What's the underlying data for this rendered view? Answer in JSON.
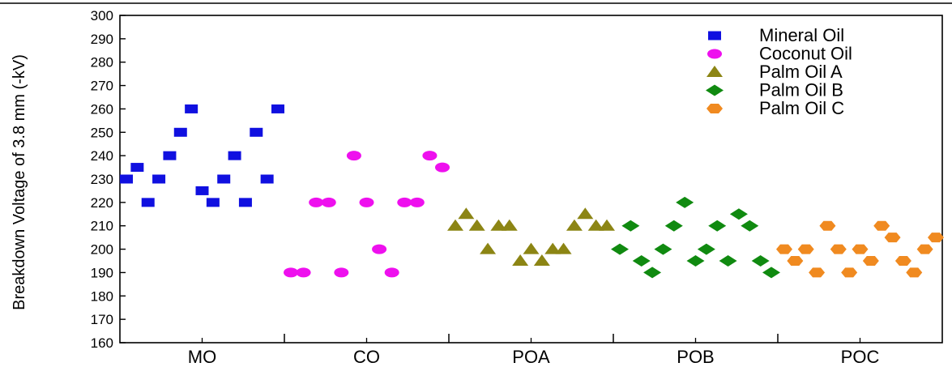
{
  "chart_data": {
    "type": "scatter",
    "ylabel": "Breakdown Voltage of 3.8 mm (-kV)",
    "ylim": [
      160,
      300
    ],
    "yticks": [
      160,
      170,
      180,
      190,
      200,
      210,
      220,
      230,
      240,
      250,
      260,
      270,
      280,
      290,
      300
    ],
    "categories": [
      "MO",
      "CO",
      "POA",
      "POB",
      "POC"
    ],
    "legend_position": "top-right",
    "grid": false,
    "series": [
      {
        "name": "Mineral Oil",
        "marker": "square",
        "color": "#1010e0",
        "values": [
          230,
          235,
          220,
          230,
          240,
          250,
          260,
          225,
          220,
          230,
          240,
          220,
          250,
          230,
          260
        ]
      },
      {
        "name": "Coconut Oil",
        "marker": "ellipse",
        "color": "#ee10ee",
        "values": [
          190,
          190,
          220,
          220,
          190,
          240,
          220,
          200,
          190,
          220,
          220,
          240,
          235
        ]
      },
      {
        "name": "Palm Oil A",
        "marker": "triangle",
        "color": "#8c8514",
        "values": [
          210,
          215,
          210,
          200,
          210,
          210,
          195,
          200,
          195,
          200,
          200,
          210,
          215,
          210,
          210
        ]
      },
      {
        "name": "Palm Oil B",
        "marker": "diamond",
        "color": "#108a10",
        "values": [
          200,
          210,
          195,
          190,
          200,
          210,
          220,
          195,
          200,
          210,
          195,
          215,
          210,
          195,
          190
        ]
      },
      {
        "name": "Palm Oil C",
        "marker": "hexagon",
        "color": "#f08a20",
        "values": [
          200,
          195,
          200,
          190,
          210,
          200,
          190,
          200,
          195,
          210,
          205,
          195,
          190,
          200,
          205
        ]
      }
    ]
  }
}
